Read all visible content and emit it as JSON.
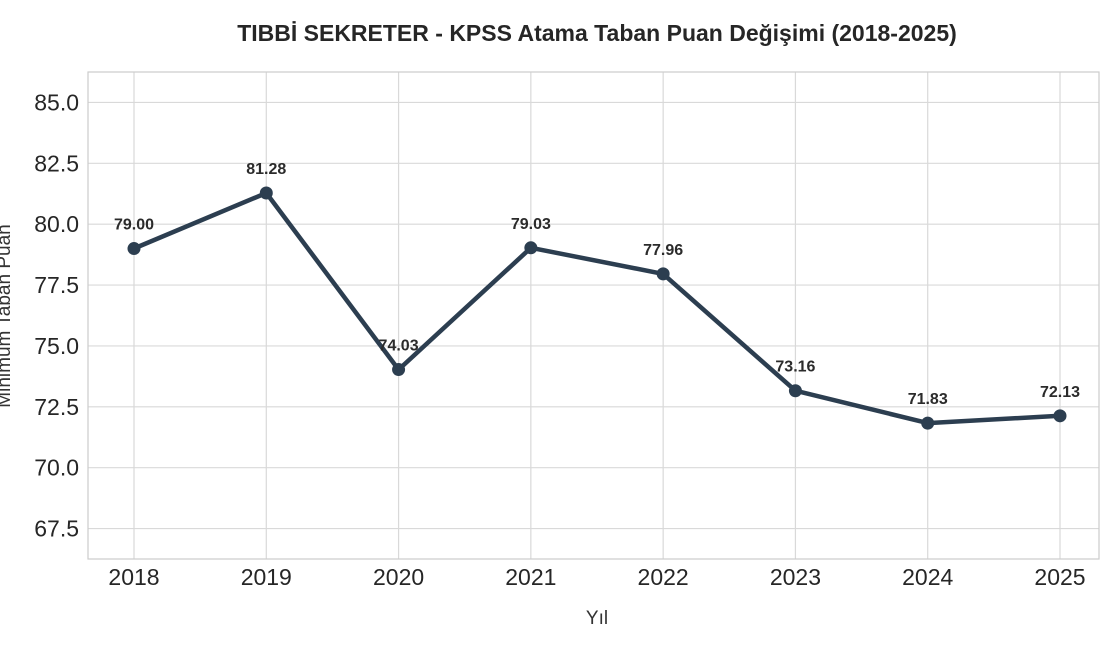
{
  "chart_data": {
    "type": "line",
    "title": "TIBBİ SEKRETER - KPSS Atama Taban Puan Değişimi (2018-2025)",
    "xlabel": "Yıl",
    "ylabel": "Minimum Taban Puan",
    "categories": [
      "2018",
      "2019",
      "2020",
      "2021",
      "2022",
      "2023",
      "2024",
      "2025"
    ],
    "series": [
      {
        "values": [
          79.0,
          81.28,
          74.03,
          79.03,
          77.96,
          73.16,
          71.83,
          72.13
        ]
      }
    ],
    "data_labels": [
      "79.00",
      "81.28",
      "74.03",
      "79.03",
      "77.96",
      "73.16",
      "71.83",
      "72.13"
    ],
    "yticks": [
      "67.5",
      "70.0",
      "72.5",
      "75.0",
      "77.5",
      "80.0",
      "82.5",
      "85.0"
    ],
    "ylim": [
      66.25,
      86.25
    ],
    "grid": true,
    "legend": "none",
    "colors": {
      "line": "#2c3e50",
      "grid": "#d9d9d9",
      "frame": "#cccccc"
    }
  }
}
